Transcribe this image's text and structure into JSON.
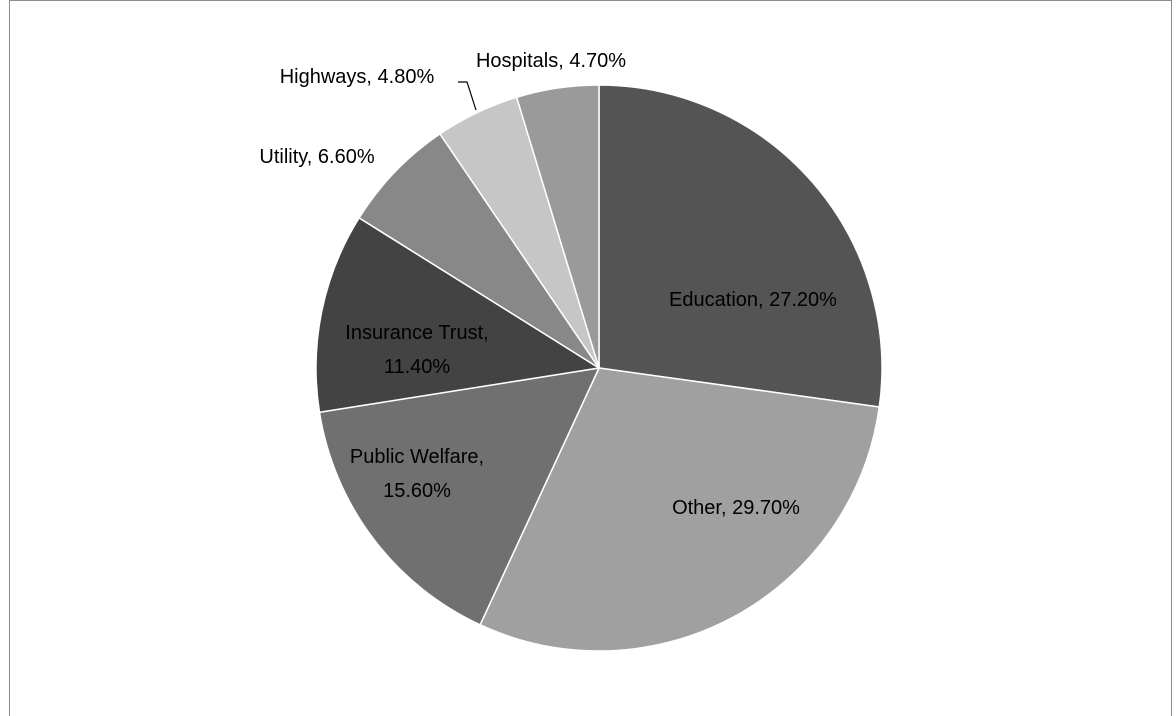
{
  "chart_data": {
    "type": "pie",
    "title": "",
    "slices": [
      {
        "label": "Education",
        "value": 27.2,
        "text": "Education, 27.20%",
        "color": "#545454"
      },
      {
        "label": "Other",
        "value": 29.7,
        "text": "Other, 29.70%",
        "color": "#a0a0a0"
      },
      {
        "label": "Public Welfare",
        "value": 15.6,
        "text": "Public Welfare, 15.60%",
        "color": "#707070"
      },
      {
        "label": "Insurance Trust",
        "value": 11.4,
        "text": "Insurance Trust, 11.40%",
        "color": "#434343"
      },
      {
        "label": "Utility",
        "value": 6.6,
        "text": "Utility, 6.60%",
        "color": "#888888"
      },
      {
        "label": "Highways",
        "value": 4.8,
        "text": "Highways, 4.80%",
        "color": "#c6c6c6"
      },
      {
        "label": "Hospitals",
        "value": 4.7,
        "text": "Hospitals, 4.70%",
        "color": "#9a9a9a"
      }
    ],
    "start_angle": "12 o'clock",
    "direction": "clockwise",
    "legend": "none",
    "data_labels": "category name and percentage"
  }
}
